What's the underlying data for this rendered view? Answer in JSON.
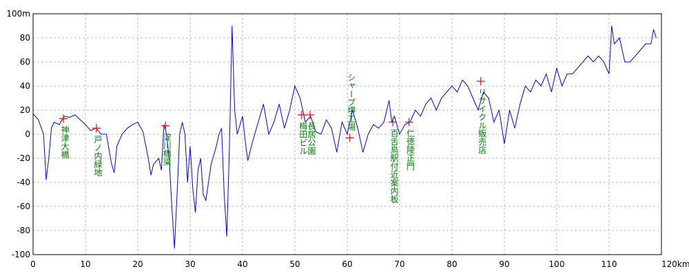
{
  "chart_data": {
    "type": "line",
    "color": "#0000ff",
    "grid": true,
    "x": [
      0,
      1,
      2,
      2.5,
      3,
      3.5,
      4,
      5,
      6,
      7,
      8,
      9,
      10,
      11,
      12,
      13,
      14,
      15,
      15.5,
      16,
      17,
      18,
      19,
      20,
      21,
      22,
      22.5,
      23,
      24,
      24.5,
      25,
      25.5,
      26,
      26.5,
      27,
      27.5,
      28,
      28.5,
      29,
      29.5,
      30,
      30.5,
      31,
      31.5,
      32,
      32.5,
      33,
      33.5,
      34,
      35,
      35.5,
      36,
      36.5,
      37,
      37.5,
      38,
      38.5,
      39,
      40,
      40.5,
      41,
      42,
      43,
      44,
      45,
      46,
      47,
      48,
      49,
      50,
      51,
      52,
      53,
      54,
      55,
      56,
      57,
      58,
      59,
      60,
      61,
      62,
      63,
      64,
      65,
      66,
      67,
      68,
      68.5,
      69,
      70,
      71,
      72,
      73,
      74,
      75,
      76,
      77,
      78,
      79,
      80,
      81,
      82,
      83,
      84,
      85,
      86,
      87,
      88,
      89,
      90,
      91,
      92,
      93,
      94,
      95,
      96,
      97,
      98,
      99,
      100,
      101,
      102,
      103,
      104,
      105,
      106,
      107,
      108,
      109,
      110,
      110.5,
      111,
      112,
      113,
      114,
      115,
      116,
      117,
      118,
      118.5,
      119
    ],
    "values": [
      17,
      12,
      0,
      -38,
      -20,
      5,
      10,
      8,
      15,
      14,
      16,
      12,
      8,
      3,
      5,
      0,
      0,
      -25,
      -32,
      -10,
      0,
      5,
      8,
      10,
      2,
      -20,
      -34,
      -25,
      -20,
      -30,
      8,
      0,
      -20,
      -60,
      -95,
      -50,
      0,
      10,
      0,
      -40,
      -10,
      -45,
      -65,
      -30,
      -20,
      -50,
      -55,
      -40,
      -25,
      -10,
      0,
      5,
      -50,
      -85,
      -10,
      90,
      20,
      0,
      15,
      -5,
      -22,
      -5,
      10,
      25,
      0,
      10,
      25,
      5,
      20,
      40,
      30,
      10,
      15,
      2,
      0,
      12,
      5,
      -15,
      10,
      0,
      20,
      5,
      -15,
      0,
      8,
      5,
      10,
      28,
      10,
      15,
      0,
      8,
      10,
      20,
      15,
      25,
      30,
      20,
      30,
      35,
      40,
      35,
      45,
      40,
      30,
      20,
      35,
      30,
      10,
      20,
      -8,
      20,
      5,
      25,
      40,
      35,
      45,
      40,
      50,
      35,
      55,
      40,
      50,
      50,
      55,
      60,
      65,
      60,
      65,
      60,
      50,
      90,
      75,
      80,
      60,
      60,
      65,
      70,
      75,
      75,
      87,
      80
    ],
    "xlim": [
      0,
      120
    ],
    "xticks": [
      0,
      10,
      20,
      30,
      40,
      50,
      60,
      70,
      80,
      90,
      100,
      110,
      {
        "value": 120,
        "label": "120km"
      }
    ],
    "ylim": [
      -100,
      100
    ],
    "yticks": [
      -100,
      -80,
      -60,
      -40,
      -20,
      0,
      20,
      40,
      60,
      80,
      {
        "value": 100,
        "label": "100m"
      }
    ],
    "annotations": [
      {
        "text": "神津大橋",
        "x": 5.8,
        "y": 13
      },
      {
        "text": "戸ノ内緑地",
        "x": 12.1,
        "y": 5
      },
      {
        "text": "淀川橋梁",
        "x": 25.3,
        "y": 7
      },
      {
        "text": "梅田ビル",
        "x": 51.3,
        "y": 16
      },
      {
        "text": "長居公園",
        "x": 52.9,
        "y": 16
      },
      {
        "text": "シャープ堺工場",
        "x": 60.5,
        "y": -3,
        "label_position": "above"
      },
      {
        "text": "百舌鳥駅付近案内板",
        "x": 68.7,
        "y": 10
      },
      {
        "text": "仁徳陵正門",
        "x": 71.8,
        "y": 10
      },
      {
        "text": "リサイクル販売店",
        "x": 85.5,
        "y": 44
      }
    ]
  }
}
